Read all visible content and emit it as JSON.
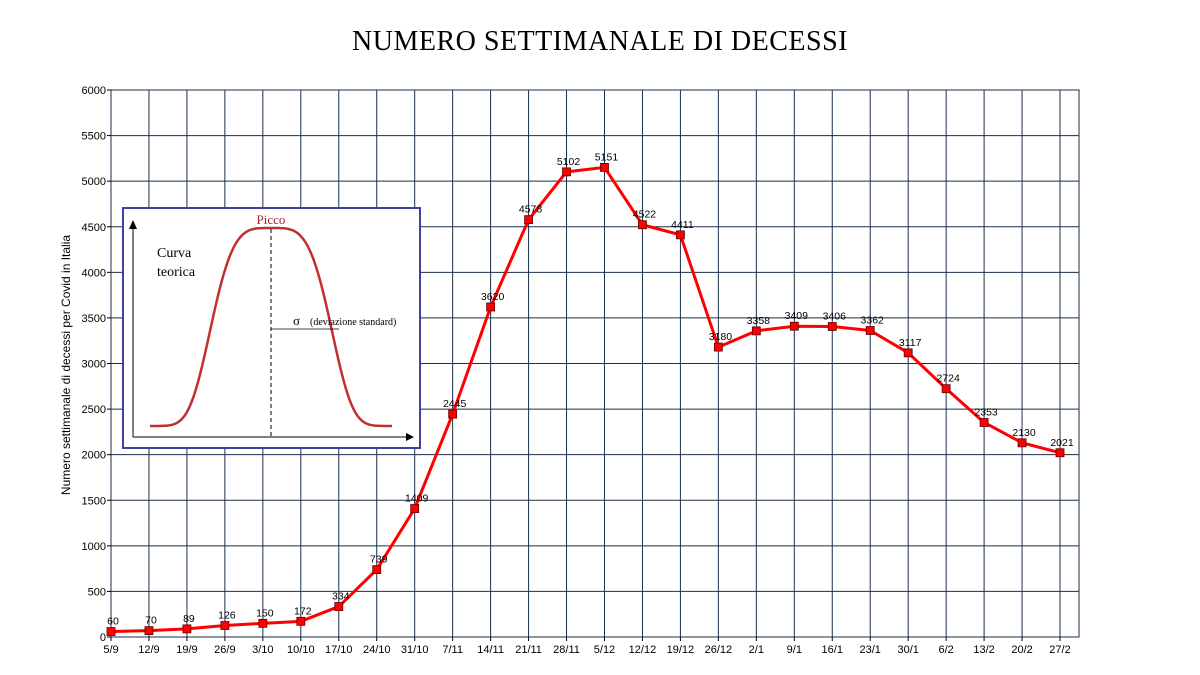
{
  "chart_data": {
    "type": "line",
    "title": "NUMERO SETTIMANALE DI DECESSI",
    "ylabel": "Numero settimanale di decessi per Covid in Italia",
    "xlabel": "",
    "x": [
      "5/9",
      "12/9",
      "19/9",
      "26/9",
      "3/10",
      "10/10",
      "17/10",
      "24/10",
      "31/10",
      "7/11",
      "14/11",
      "21/11",
      "28/11",
      "5/12",
      "12/12",
      "19/12",
      "26/12",
      "2/1",
      "9/1",
      "16/1",
      "23/1",
      "30/1",
      "6/2",
      "13/2",
      "20/2",
      "27/2"
    ],
    "series": [
      {
        "values": [
          60,
          70,
          89,
          126,
          150,
          172,
          334,
          739,
          1409,
          2445,
          3620,
          4578,
          5102,
          5151,
          4522,
          4411,
          3180,
          3358,
          3409,
          3406,
          3362,
          3117,
          2724,
          2353,
          2130,
          2021
        ],
        "color": "#ff0000",
        "marker": "square"
      }
    ],
    "ylim": [
      0,
      6000
    ],
    "ytick_step": 500,
    "grid": true,
    "inset": {
      "label": "Curva teorica",
      "label_lines": [
        "Curva",
        "teorica"
      ],
      "peak_label": "Picco",
      "sigma_symbol": "σ",
      "sigma_label": "(deviazione standard)",
      "border_color": "#4040a0",
      "curve_color": "#c03030",
      "peak_label_color": "#b02030"
    }
  }
}
